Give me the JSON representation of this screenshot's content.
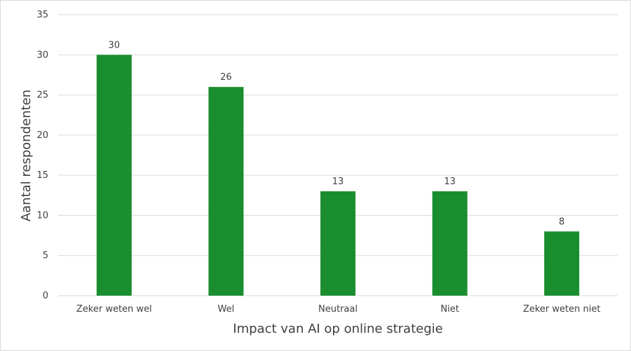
{
  "chart_data": {
    "type": "bar",
    "categories": [
      "Zeker weten wel",
      "Wel",
      "Neutraal",
      "Niet",
      "Zeker weten niet"
    ],
    "values": [
      30,
      26,
      13,
      13,
      8
    ],
    "xlabel": "Impact van AI op online strategie",
    "ylabel": "Aantal respondenten",
    "ylim": [
      0,
      35
    ],
    "yticks": [
      0,
      5,
      10,
      15,
      20,
      25,
      30,
      35
    ],
    "grid": true,
    "legend": "none",
    "bar_color": "#1a8d2f"
  }
}
